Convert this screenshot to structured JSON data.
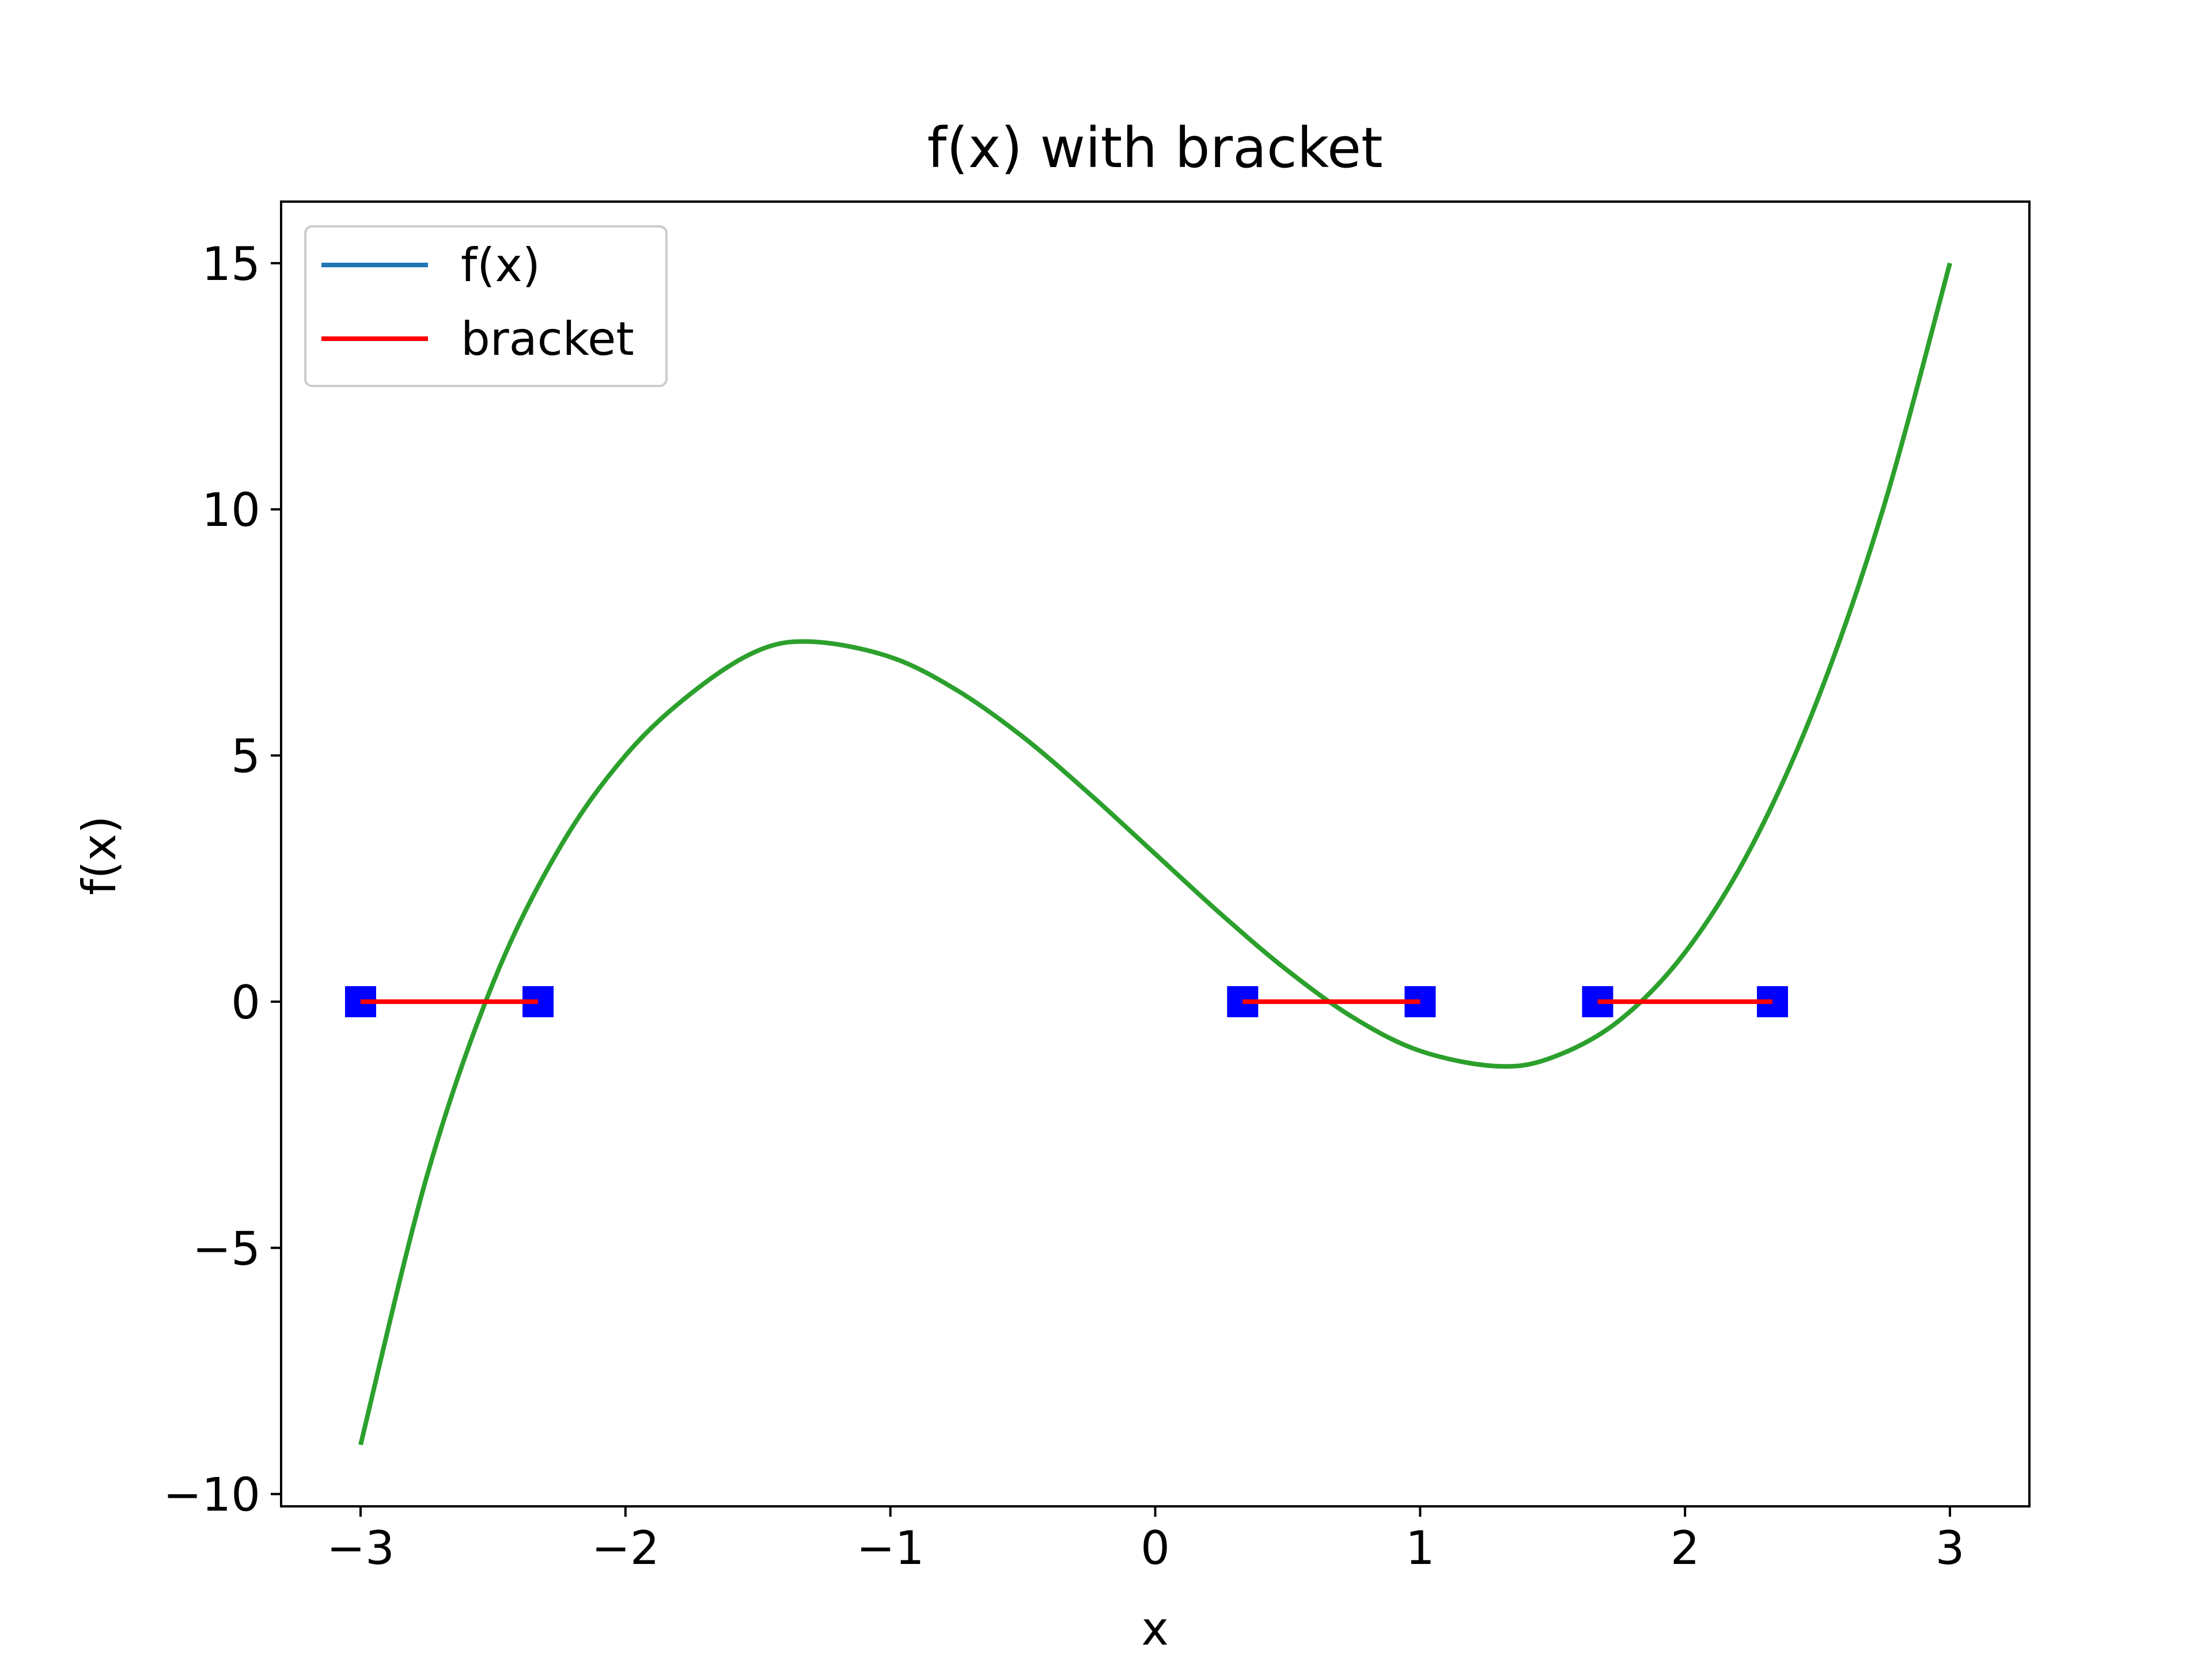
{
  "chart_data": {
    "type": "line",
    "title": "f(x) with bracket",
    "xlabel": "x",
    "ylabel": "f(x)",
    "xlim": [
      -3.3,
      3.3
    ],
    "ylim": [
      -10.25,
      16.25
    ],
    "xticks": [
      -3,
      -2,
      -1,
      0,
      1,
      2,
      3
    ],
    "yticks": [
      -10,
      -5,
      0,
      5,
      10,
      15
    ],
    "xtick_labels": [
      "−3",
      "−2",
      "−1",
      "0",
      "1",
      "2",
      "3"
    ],
    "ytick_labels": [
      "−10",
      "−5",
      "0",
      "5",
      "10",
      "15"
    ],
    "grid": false,
    "legend_position": "top-left",
    "series": [
      {
        "name": "f(x)",
        "legend_color": "#1f77b4",
        "curve_color": "#2ca02c",
        "x": [
          -3.0,
          -2.75,
          -2.5,
          -2.25,
          -2.0,
          -1.75,
          -1.5,
          -1.29,
          -1.0,
          -0.75,
          -0.5,
          -0.25,
          0.0,
          0.25,
          0.5,
          0.75,
          1.0,
          1.29,
          1.5,
          1.75,
          2.0,
          2.25,
          2.5,
          2.75,
          3.0
        ],
        "y": [
          -9.0,
          -3.55,
          0.38,
          3.11,
          5.0,
          6.27,
          7.13,
          7.31,
          7.0,
          6.33,
          5.38,
          4.23,
          3.0,
          1.77,
          0.63,
          -0.33,
          -1.0,
          -1.31,
          -1.13,
          -0.39,
          1.0,
          3.14,
          6.13,
          10.05,
          15.0
        ]
      },
      {
        "name": "bracket",
        "color": "#ff0000",
        "marker_color": "#0000ff",
        "segments": [
          {
            "x": [
              -3.0,
              -2.33
            ],
            "y": [
              0,
              0
            ]
          },
          {
            "x": [
              0.33,
              1.0
            ],
            "y": [
              0,
              0
            ]
          },
          {
            "x": [
              1.67,
              2.33
            ],
            "y": [
              0,
              0
            ]
          }
        ]
      }
    ]
  }
}
